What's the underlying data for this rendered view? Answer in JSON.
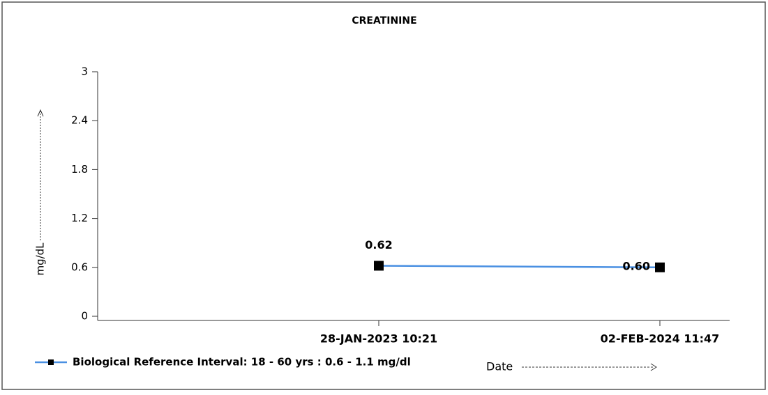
{
  "chart_data": {
    "type": "line",
    "title": "CREATININE",
    "y_label": "mg/dL",
    "x_label": "Date",
    "categories": [
      "28-JAN-2023 10:21",
      "02-FEB-2024 11:47"
    ],
    "series": [
      {
        "name": "Biological Reference Interval: 18 - 60 yrs : 0.6 - 1.1 mg/dl",
        "color": "#4a90e2",
        "values": [
          0.62,
          0.6
        ],
        "value_labels": [
          "0.62",
          "0.60"
        ]
      }
    ],
    "ylim": [
      0,
      3
    ],
    "yticks": [
      0,
      0.6,
      1.2,
      1.8,
      2.4,
      3
    ]
  }
}
